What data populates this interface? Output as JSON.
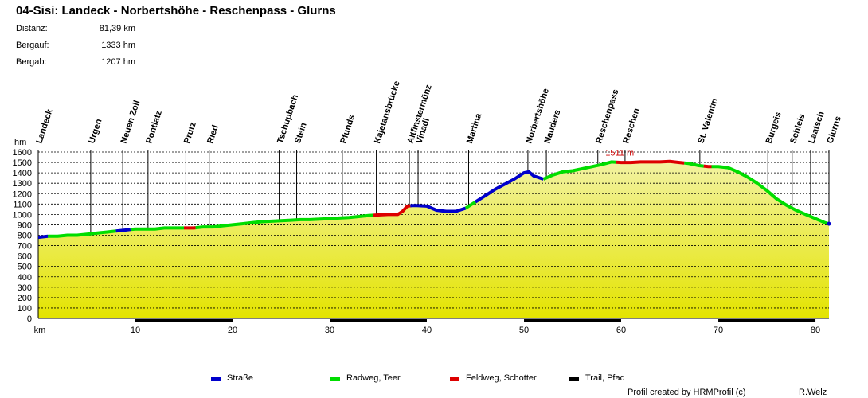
{
  "title": "04-Sisi: Landeck - Norbertshöhe - Reschenpass - Glurns",
  "stats": [
    {
      "label": "Distanz:",
      "value": "81,39 km"
    },
    {
      "label": "Bergauf:",
      "value": "1333 hm"
    },
    {
      "label": "Bergab:",
      "value": "1207 hm"
    }
  ],
  "legend": [
    {
      "label": "Straße",
      "color": "#0000cc"
    },
    {
      "label": "Radweg, Teer",
      "color": "#00dd00"
    },
    {
      "label": "Feldweg, Schotter",
      "color": "#dd0000"
    },
    {
      "label": "Trail, Pfad",
      "color": "#000000"
    }
  ],
  "credit": "Profil created by HRMProfil (c)",
  "author": "R.Welz",
  "colors": {
    "fill_top": "#f2f2a2",
    "fill_bottom": "#e4e400",
    "profile_fill": "#e9e96a",
    "max_label": "#cc0000",
    "road": "#0000cc",
    "bike": "#00dd00",
    "gravel": "#dd0000"
  },
  "chart_data": {
    "type": "area",
    "ylabel": "hm",
    "xlabel": "km",
    "xlim": [
      0,
      81.39
    ],
    "ylim": [
      0,
      1600
    ],
    "yticks": [
      0,
      100,
      200,
      300,
      400,
      500,
      600,
      700,
      800,
      900,
      1000,
      1100,
      1200,
      1300,
      1400,
      1500,
      1600
    ],
    "xticks": [
      10,
      20,
      30,
      40,
      50,
      60,
      70,
      80
    ],
    "grid": true,
    "max_label": "1511 m",
    "max_point": {
      "x": 59.2,
      "y": 1511
    },
    "profile": {
      "x": [
        0,
        1,
        2,
        3,
        4,
        5,
        6,
        7,
        8,
        9,
        10,
        11,
        12,
        13,
        14,
        15,
        16,
        17,
        18,
        19,
        20,
        21,
        22,
        23,
        24,
        25,
        26,
        27,
        28,
        29,
        30,
        31,
        32,
        33,
        34,
        35,
        36,
        37,
        37.5,
        38,
        38.5,
        39,
        40,
        41,
        42,
        43,
        44,
        45,
        46,
        47,
        48,
        49,
        50,
        50.5,
        51,
        52,
        53,
        54,
        55,
        56,
        57,
        58,
        59,
        60,
        61,
        62,
        63,
        64,
        65,
        66,
        67,
        68,
        69,
        70,
        71,
        72,
        73,
        74,
        75,
        76,
        77,
        78,
        79,
        80,
        81,
        81.39
      ],
      "y": [
        780,
        790,
        790,
        800,
        800,
        810,
        820,
        830,
        840,
        850,
        860,
        860,
        860,
        870,
        870,
        870,
        870,
        880,
        880,
        890,
        900,
        910,
        920,
        930,
        935,
        940,
        945,
        950,
        950,
        955,
        960,
        965,
        970,
        980,
        990,
        995,
        1000,
        1000,
        1030,
        1080,
        1085,
        1085,
        1080,
        1040,
        1030,
        1030,
        1060,
        1120,
        1180,
        1240,
        1290,
        1340,
        1400,
        1410,
        1370,
        1340,
        1380,
        1410,
        1420,
        1440,
        1460,
        1480,
        1505,
        1500,
        1500,
        1505,
        1505,
        1505,
        1510,
        1500,
        1490,
        1470,
        1460,
        1460,
        1450,
        1410,
        1360,
        1300,
        1230,
        1150,
        1090,
        1040,
        1000,
        960,
        920,
        910
      ]
    },
    "surface_segments": [
      {
        "type": "road",
        "from": 0,
        "to": 1
      },
      {
        "type": "bike",
        "from": 1,
        "to": 8
      },
      {
        "type": "road",
        "from": 8,
        "to": 9.5
      },
      {
        "type": "bike",
        "from": 9.5,
        "to": 15
      },
      {
        "type": "gravel",
        "from": 15,
        "to": 16.2
      },
      {
        "type": "bike",
        "from": 16.2,
        "to": 34.5
      },
      {
        "type": "gravel",
        "from": 34.5,
        "to": 38.3
      },
      {
        "type": "road",
        "from": 38.3,
        "to": 44
      },
      {
        "type": "bike",
        "from": 44,
        "to": 45
      },
      {
        "type": "road",
        "from": 45,
        "to": 52
      },
      {
        "type": "bike",
        "from": 52,
        "to": 59.5
      },
      {
        "type": "gravel",
        "from": 59.5,
        "to": 66.5
      },
      {
        "type": "bike",
        "from": 66.5,
        "to": 68.5
      },
      {
        "type": "gravel",
        "from": 68.5,
        "to": 69.3
      },
      {
        "type": "bike",
        "from": 69.3,
        "to": 81.3
      },
      {
        "type": "road",
        "from": 81.3,
        "to": 81.39
      }
    ],
    "places": [
      {
        "name": "Landeck",
        "km": 0
      },
      {
        "name": "Urgen",
        "km": 5.4
      },
      {
        "name": "Neuen Zoll",
        "km": 8.7
      },
      {
        "name": "Pontlatz",
        "km": 11.3
      },
      {
        "name": "Prutz",
        "km": 15.2
      },
      {
        "name": "Ried",
        "km": 17.6
      },
      {
        "name": "Tschupbach",
        "km": 24.8
      },
      {
        "name": "Stein",
        "km": 26.6
      },
      {
        "name": "Pfunds",
        "km": 31.3
      },
      {
        "name": "Kajetansbrücke",
        "km": 34.8
      },
      {
        "name": "Altfinstermünz",
        "km": 38.2
      },
      {
        "name": "Vinadi",
        "km": 39.1
      },
      {
        "name": "Martina",
        "km": 44.3
      },
      {
        "name": "Norbertshöhe",
        "km": 50.4
      },
      {
        "name": "Nauders",
        "km": 52.3
      },
      {
        "name": "Reschenpass",
        "km": 57.6
      },
      {
        "name": "Reschen",
        "km": 60.4
      },
      {
        "name": "St. Valentin",
        "km": 68.1
      },
      {
        "name": "Burgeis",
        "km": 75.1
      },
      {
        "name": "Schleis",
        "km": 77.6
      },
      {
        "name": "Laatsch",
        "km": 79.5
      },
      {
        "name": "Glurns",
        "km": 81.39
      }
    ]
  }
}
